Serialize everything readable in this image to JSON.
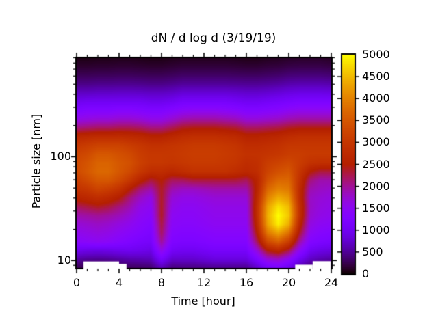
{
  "title": {
    "text": "dN / d log d (3/19/19)"
  },
  "x_axis": {
    "label": "Time [hour]",
    "range": [
      0,
      24
    ],
    "major_ticks": [
      0,
      4,
      8,
      12,
      16,
      20,
      24
    ],
    "minor_ticks": [
      1,
      2,
      3,
      5,
      6,
      7,
      9,
      10,
      11,
      13,
      14,
      15,
      17,
      18,
      19,
      21,
      22,
      23
    ]
  },
  "y_axis": {
    "label": "Particle size [nm]",
    "scale": "log",
    "range": [
      8.5,
      900
    ],
    "major_ticks": [
      10,
      100
    ],
    "minor_ticks": [
      9,
      20,
      30,
      40,
      50,
      60,
      70,
      80,
      90,
      200,
      300,
      400,
      500,
      600,
      700,
      800,
      900
    ]
  },
  "colorbar": {
    "range": [
      0,
      5000
    ],
    "tick_values": [
      0,
      500,
      1000,
      1500,
      2000,
      2500,
      3000,
      3500,
      4000,
      4500,
      5000
    ],
    "palette_name": "gnuplot black-violet-magenta-red-orange-yellow",
    "stops": {
      "0": "#000000",
      "500": "#510096",
      "1000": "#7202f3",
      "1500": "#8c07f2",
      "2000": "#a11096",
      "2500": "#b42000",
      "3000": "#c63700",
      "3500": "#d55700",
      "4000": "#e48300",
      "4500": "#f2ba00",
      "5000": "#ffff00"
    }
  },
  "chart_data": {
    "type": "heatmap",
    "title": "dN / d log d (3/19/19)",
    "xlabel": "Time [hour]",
    "ylabel": "Particle size [nm]",
    "value_range": [
      0,
      5000
    ],
    "x_hours": [
      0,
      1,
      2,
      3,
      4,
      5,
      6,
      7,
      8,
      9,
      10,
      11,
      12,
      13,
      14,
      15,
      16,
      17,
      18,
      19,
      20,
      21,
      22,
      23,
      24
    ],
    "y_sizes_nm": [
      8.5,
      10.3,
      12.5,
      15.2,
      18.5,
      22.4,
      27.2,
      33.0,
      40.1,
      48.7,
      59.1,
      71.8,
      87.1,
      105.8,
      128.4,
      155.9,
      189.3,
      229.8,
      279.0,
      338.7,
      411.2,
      499.2,
      606.0,
      735.7,
      893.2
    ],
    "values": [
      [
        250,
        230,
        220,
        230,
        250,
        280,
        300,
        330,
        600,
        380,
        400,
        400,
        420,
        450,
        450,
        450,
        450,
        700,
        1000,
        1100,
        900,
        550,
        350,
        300,
        250
      ],
      [
        550,
        500,
        480,
        500,
        550,
        600,
        620,
        650,
        1100,
        750,
        750,
        750,
        800,
        850,
        850,
        850,
        850,
        1200,
        1700,
        1800,
        1500,
        1000,
        700,
        600,
        550
      ],
      [
        950,
        900,
        880,
        900,
        950,
        980,
        950,
        900,
        1600,
        1050,
        1000,
        1000,
        1050,
        1100,
        1100,
        1100,
        1100,
        1700,
        2500,
        2700,
        2300,
        1500,
        1000,
        900,
        850
      ],
      [
        1400,
        1450,
        1500,
        1450,
        1350,
        1250,
        1150,
        1100,
        2000,
        1250,
        1200,
        1200,
        1250,
        1300,
        1300,
        1300,
        1300,
        2200,
        3300,
        3600,
        3100,
        2000,
        1300,
        1200,
        1150
      ],
      [
        1550,
        1600,
        1650,
        1600,
        1500,
        1400,
        1300,
        1200,
        2200,
        1350,
        1300,
        1300,
        1350,
        1400,
        1400,
        1400,
        1400,
        2500,
        3900,
        4300,
        3800,
        2400,
        1500,
        1350,
        1300
      ],
      [
        1700,
        1750,
        1800,
        1750,
        1650,
        1550,
        1400,
        1300,
        2300,
        1450,
        1400,
        1400,
        1450,
        1500,
        1500,
        1500,
        1500,
        2700,
        4300,
        4900,
        4400,
        2700,
        1650,
        1500,
        1450
      ],
      [
        1900,
        1950,
        2000,
        1950,
        1850,
        1700,
        1500,
        1400,
        2400,
        1500,
        1450,
        1450,
        1500,
        1550,
        1550,
        1550,
        1550,
        2800,
        4400,
        5000,
        4600,
        2900,
        1750,
        1600,
        1550
      ],
      [
        2200,
        2300,
        2400,
        2300,
        2100,
        1900,
        1600,
        1500,
        2400,
        1600,
        1500,
        1500,
        1550,
        1600,
        1600,
        1600,
        1600,
        2800,
        4300,
        4800,
        4500,
        2900,
        1800,
        1650,
        1600
      ],
      [
        2600,
        2700,
        2800,
        2700,
        2500,
        2100,
        1800,
        1600,
        2400,
        1700,
        1600,
        1600,
        1650,
        1700,
        1700,
        1700,
        1700,
        2700,
        4000,
        4400,
        4200,
        2800,
        1800,
        1700,
        1650
      ],
      [
        2900,
        3000,
        3200,
        3100,
        2900,
        2500,
        2100,
        1900,
        2400,
        1900,
        1800,
        1800,
        1850,
        1900,
        1900,
        1900,
        1900,
        2600,
        3700,
        4000,
        3900,
        2800,
        1900,
        1800,
        1750
      ],
      [
        3100,
        3300,
        3500,
        3500,
        3300,
        3000,
        2600,
        2300,
        2500,
        2200,
        2200,
        2300,
        2300,
        2300,
        2300,
        2300,
        2200,
        2600,
        3400,
        3700,
        3700,
        2900,
        2100,
        1900,
        1900
      ],
      [
        3300,
        3500,
        3700,
        3700,
        3500,
        3300,
        3000,
        2800,
        2800,
        2700,
        2800,
        2900,
        2900,
        2900,
        2900,
        2800,
        2700,
        2800,
        3200,
        3400,
        3500,
        3000,
        2500,
        2300,
        2300
      ],
      [
        3300,
        3450,
        3650,
        3650,
        3500,
        3400,
        3150,
        3000,
        3000,
        2950,
        3000,
        3050,
        3050,
        3050,
        3000,
        2950,
        2800,
        2850,
        3100,
        3200,
        3300,
        3100,
        2900,
        2850,
        2850
      ],
      [
        3200,
        3300,
        3500,
        3500,
        3400,
        3300,
        3100,
        3000,
        3000,
        3000,
        3050,
        3100,
        3100,
        3100,
        3050,
        3000,
        2900,
        2900,
        2950,
        3000,
        3100,
        3100,
        3050,
        3050,
        3050
      ],
      [
        3000,
        3100,
        3200,
        3200,
        3200,
        3100,
        3000,
        2900,
        2900,
        2950,
        3000,
        3050,
        3050,
        3050,
        3000,
        2950,
        2800,
        2800,
        2850,
        2900,
        3000,
        3000,
        3000,
        3000,
        3000
      ],
      [
        2700,
        2750,
        2800,
        2800,
        2800,
        2750,
        2700,
        2600,
        2600,
        2700,
        2800,
        2850,
        2850,
        2850,
        2800,
        2750,
        2600,
        2600,
        2650,
        2700,
        2800,
        2850,
        2850,
        2850,
        2850
      ],
      [
        2100,
        2150,
        2200,
        2200,
        2250,
        2250,
        2200,
        2100,
        2100,
        2250,
        2400,
        2450,
        2450,
        2450,
        2400,
        2350,
        2200,
        2200,
        2250,
        2300,
        2400,
        2450,
        2450,
        2450,
        2450
      ],
      [
        1600,
        1650,
        1700,
        1700,
        1750,
        1750,
        1700,
        1600,
        1600,
        1750,
        1900,
        1950,
        1950,
        1950,
        1900,
        1850,
        1700,
        1700,
        1750,
        1800,
        1900,
        1950,
        1950,
        1950,
        1950
      ],
      [
        1250,
        1300,
        1300,
        1300,
        1350,
        1350,
        1300,
        1250,
        1250,
        1350,
        1450,
        1500,
        1500,
        1500,
        1450,
        1400,
        1300,
        1300,
        1350,
        1400,
        1500,
        1550,
        1550,
        1550,
        1550
      ],
      [
        950,
        1000,
        1000,
        1000,
        1000,
        1000,
        1000,
        950,
        950,
        1000,
        1100,
        1100,
        1100,
        1100,
        1100,
        1050,
        1000,
        1000,
        1050,
        1100,
        1150,
        1200,
        1200,
        1200,
        1200
      ],
      [
        700,
        700,
        720,
        720,
        730,
        730,
        720,
        700,
        700,
        730,
        800,
        800,
        800,
        800,
        800,
        780,
        750,
        750,
        780,
        820,
        870,
        900,
        900,
        900,
        880
      ],
      [
        450,
        450,
        470,
        470,
        480,
        480,
        470,
        450,
        450,
        480,
        520,
        520,
        520,
        520,
        520,
        510,
        500,
        500,
        520,
        550,
        600,
        620,
        620,
        620,
        600
      ],
      [
        280,
        280,
        290,
        290,
        300,
        300,
        290,
        280,
        280,
        300,
        330,
        330,
        330,
        330,
        330,
        320,
        310,
        310,
        330,
        350,
        390,
        400,
        400,
        400,
        380
      ],
      [
        150,
        150,
        160,
        160,
        170,
        170,
        160,
        150,
        150,
        170,
        190,
        190,
        190,
        190,
        190,
        180,
        170,
        170,
        190,
        200,
        230,
        240,
        240,
        240,
        220
      ],
      [
        60,
        60,
        70,
        70,
        80,
        80,
        70,
        60,
        60,
        80,
        90,
        90,
        90,
        90,
        90,
        80,
        70,
        70,
        90,
        100,
        120,
        130,
        130,
        130,
        110
      ]
    ],
    "no_data_regions": [
      {
        "t_start": 0.65,
        "t_end": 4.0,
        "d_below_nm": 9.8
      },
      {
        "t_start": 4.0,
        "t_end": 4.7,
        "d_below_nm": 9.3
      },
      {
        "t_start": 20.6,
        "t_end": 22.25,
        "d_below_nm": 9.1
      },
      {
        "t_start": 22.25,
        "t_end": 23.95,
        "d_below_nm": 9.85
      }
    ],
    "legend_position": "right colorbar",
    "grid": "off"
  }
}
